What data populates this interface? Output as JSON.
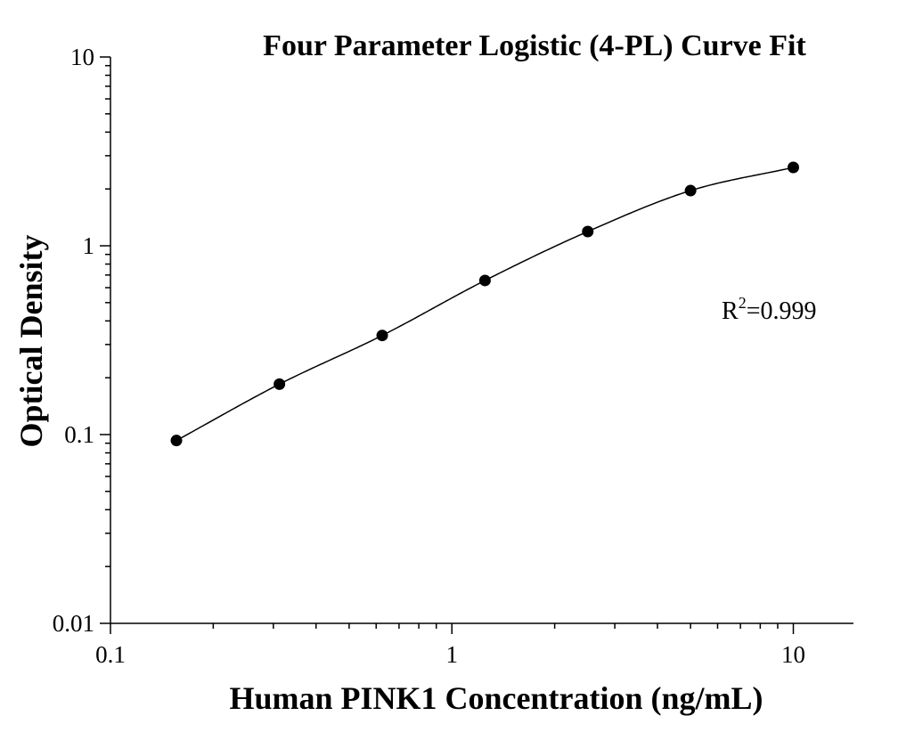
{
  "chart_data": {
    "type": "scatter",
    "title": "Four Parameter Logistic (4-PL) Curve Fit",
    "xlabel": "Human PINK1 Concentration (ng/mL)",
    "ylabel": "Optical Density",
    "xscale": "log",
    "yscale": "log",
    "xlim": [
      0.1,
      15
    ],
    "ylim": [
      0.01,
      10
    ],
    "x_ticks": [
      0.1,
      1,
      10
    ],
    "x_tick_labels": [
      "0.1",
      "1",
      "10"
    ],
    "y_ticks": [
      0.01,
      0.1,
      1,
      10
    ],
    "y_tick_labels": [
      "0.01",
      "0.1",
      "1",
      "10"
    ],
    "grid": false,
    "legend": "none",
    "series": [
      {
        "kind": "points",
        "x": [
          0.156,
          0.3125,
          0.625,
          1.25,
          2.5,
          5,
          10
        ],
        "y": [
          0.093,
          0.185,
          0.335,
          0.655,
          1.19,
          1.96,
          2.6
        ]
      },
      {
        "kind": "fit-line",
        "model": "4PL",
        "x_range": [
          0.156,
          10
        ]
      }
    ],
    "annotation": {
      "r2_prefix": "R",
      "r2_sup": "2",
      "r2_value": "=0.999"
    },
    "colors": {
      "marker": "#000000",
      "line": "#000000"
    }
  }
}
